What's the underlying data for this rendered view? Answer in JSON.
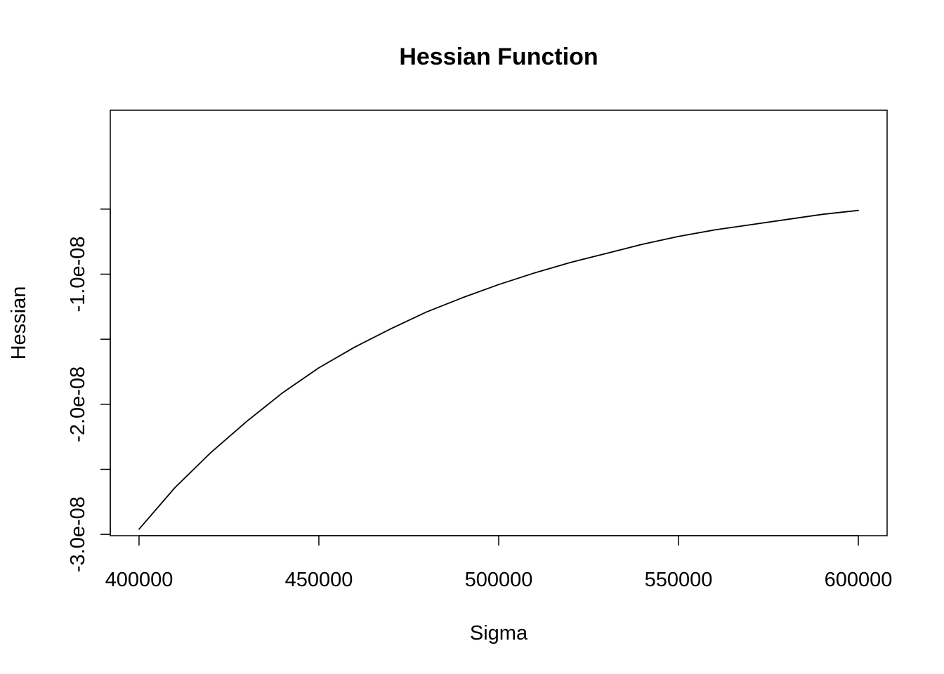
{
  "chart_data": {
    "type": "line",
    "title": "Hessian Function",
    "xlabel": "Sigma",
    "ylabel": "Hessian",
    "xlim": [
      392000,
      608000
    ],
    "ylim": [
      -3.01e-08,
      2.6e-09
    ],
    "x_ticks": [
      400000,
      450000,
      500000,
      550000,
      600000
    ],
    "x_tick_labels": [
      "400000",
      "450000",
      "500000",
      "550000",
      "600000"
    ],
    "y_ticks": [
      -3e-08,
      -2.5e-08,
      -2e-08,
      -1.5e-08,
      -1e-08,
      -5e-09
    ],
    "y_tick_labels": [
      "-3.0e-08",
      "",
      "-2.0e-08",
      "",
      "-1.0e-08",
      ""
    ],
    "grid": false,
    "legend": "none",
    "series": [
      {
        "color": "#000000",
        "x": [
          400000,
          410000,
          420000,
          430000,
          440000,
          450000,
          460000,
          470000,
          480000,
          490000,
          500000,
          510000,
          520000,
          530000,
          540000,
          550000,
          560000,
          570000,
          580000,
          590000,
          600000
        ],
        "y": [
          -2.96e-08,
          -2.64e-08,
          -2.37e-08,
          -2.13e-08,
          -1.91e-08,
          -1.72e-08,
          -1.56e-08,
          -1.42e-08,
          -1.29e-08,
          -1.18e-08,
          -1.08e-08,
          -9.9e-09,
          -9.1e-09,
          -8.4e-09,
          -7.7e-09,
          -7.1e-09,
          -6.6e-09,
          -6.2e-09,
          -5.8e-09,
          -5.4e-09,
          -5.1e-09
        ]
      }
    ]
  }
}
